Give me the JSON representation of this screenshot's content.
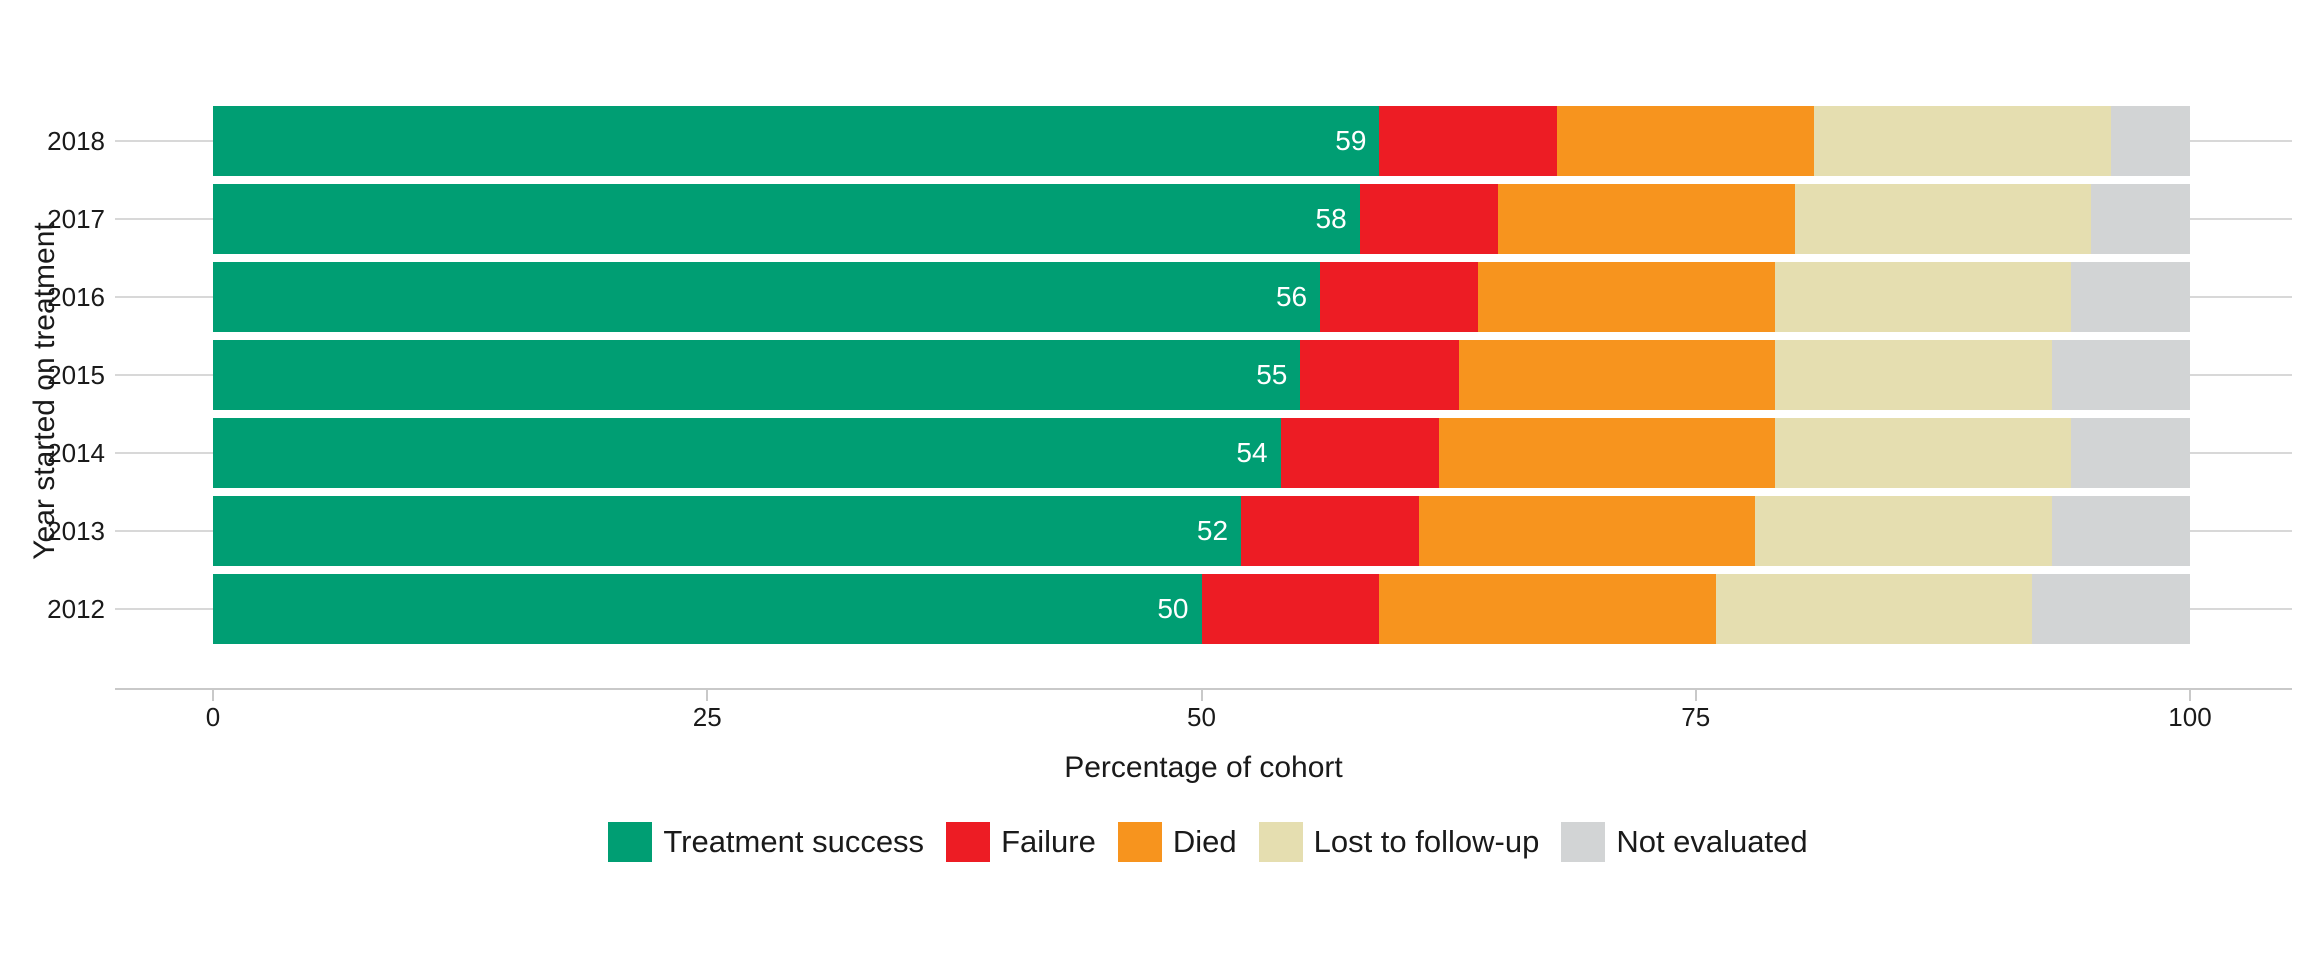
{
  "chart_data": {
    "type": "bar",
    "orientation": "horizontal",
    "stacked": true,
    "unit": "percent",
    "title": "",
    "xlabel": "Percentage of cohort",
    "ylabel": "Year started on treatment",
    "xlim": [
      0,
      100
    ],
    "x_ticks": [
      0,
      25,
      50,
      75,
      100
    ],
    "grid": "horizontal-gridlines",
    "legend_position": "bottom",
    "categories": [
      "2018",
      "2017",
      "2016",
      "2015",
      "2014",
      "2013",
      "2012"
    ],
    "series": [
      {
        "name": "Treatment success",
        "color": "#009E73",
        "values": [
          59,
          58,
          56,
          55,
          54,
          52,
          50
        ],
        "show_labels": true,
        "label_color": "#FFFFFF"
      },
      {
        "name": "Failure",
        "color": "#ED1C24",
        "values": [
          9,
          7,
          8,
          8,
          8,
          9,
          9
        ]
      },
      {
        "name": "Died",
        "color": "#F7941E",
        "values": [
          13,
          15,
          15,
          16,
          17,
          17,
          17
        ]
      },
      {
        "name": "Lost to follow-up",
        "color": "#E5DEB0",
        "values": [
          15,
          15,
          15,
          14,
          15,
          15,
          16
        ]
      },
      {
        "name": "Not evaluated",
        "color": "#D2D4D5",
        "values": [
          4,
          5,
          6,
          7,
          6,
          7,
          8
        ]
      }
    ],
    "bar_value_labels": [
      "59",
      "58",
      "56",
      "55",
      "54",
      "52",
      "50"
    ]
  }
}
